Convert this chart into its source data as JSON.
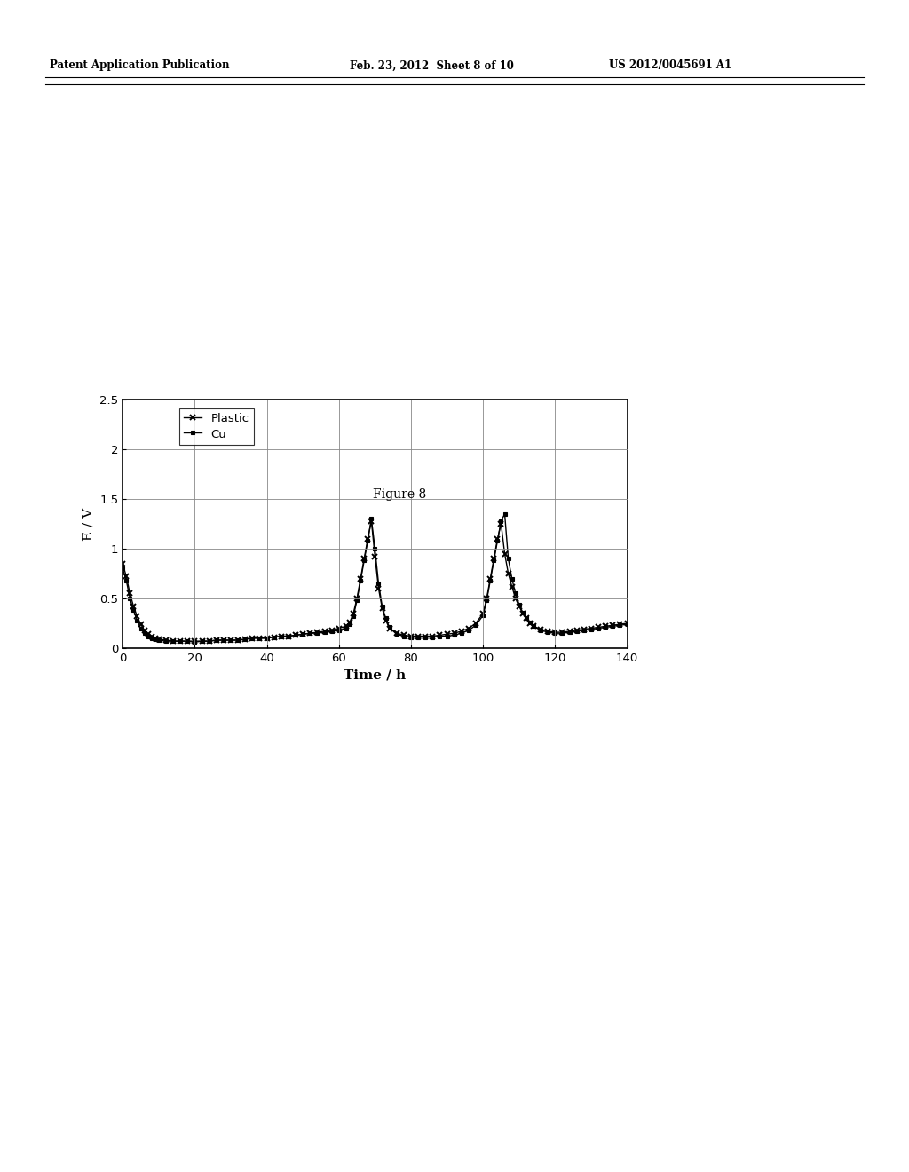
{
  "title": "Figure 8",
  "xlabel": "Time / h",
  "ylabel": "E / V",
  "xlim": [
    0,
    140
  ],
  "ylim": [
    0,
    2.5
  ],
  "xticks": [
    0,
    20,
    40,
    60,
    80,
    100,
    120,
    140
  ],
  "yticks": [
    0,
    0.5,
    1,
    1.5,
    2,
    2.5
  ],
  "legend_labels": [
    "Plastic",
    "Cu"
  ],
  "header_left": "Patent Application Publication",
  "header_center": "Feb. 23, 2012  Sheet 8 of 10",
  "header_right": "US 2012/0045691 A1",
  "plastic_x": [
    0,
    1,
    2,
    3,
    4,
    5,
    6,
    7,
    8,
    9,
    10,
    12,
    14,
    16,
    18,
    20,
    22,
    24,
    26,
    28,
    30,
    32,
    34,
    36,
    38,
    40,
    42,
    44,
    46,
    48,
    50,
    52,
    54,
    56,
    58,
    60,
    62,
    63,
    64,
    65,
    66,
    67,
    68,
    69,
    70,
    71,
    72,
    73,
    74,
    76,
    78,
    80,
    82,
    84,
    86,
    88,
    90,
    92,
    94,
    96,
    98,
    100,
    101,
    102,
    103,
    104,
    105,
    106,
    107,
    108,
    109,
    110,
    111,
    112,
    113,
    114,
    116,
    118,
    120,
    122,
    124,
    126,
    128,
    130,
    132,
    134,
    136,
    138,
    140
  ],
  "plastic_y": [
    0.85,
    0.72,
    0.55,
    0.42,
    0.32,
    0.24,
    0.18,
    0.14,
    0.12,
    0.1,
    0.09,
    0.08,
    0.07,
    0.07,
    0.07,
    0.07,
    0.07,
    0.07,
    0.08,
    0.08,
    0.08,
    0.08,
    0.09,
    0.1,
    0.1,
    0.1,
    0.11,
    0.12,
    0.12,
    0.13,
    0.14,
    0.15,
    0.16,
    0.17,
    0.18,
    0.2,
    0.22,
    0.26,
    0.35,
    0.5,
    0.7,
    0.9,
    1.1,
    1.28,
    0.92,
    0.6,
    0.4,
    0.28,
    0.2,
    0.15,
    0.13,
    0.12,
    0.12,
    0.12,
    0.12,
    0.13,
    0.14,
    0.15,
    0.17,
    0.2,
    0.25,
    0.35,
    0.5,
    0.7,
    0.9,
    1.1,
    1.25,
    0.95,
    0.75,
    0.62,
    0.5,
    0.42,
    0.35,
    0.3,
    0.25,
    0.22,
    0.19,
    0.17,
    0.16,
    0.16,
    0.17,
    0.18,
    0.19,
    0.2,
    0.21,
    0.22,
    0.23,
    0.24,
    0.25
  ],
  "cu_x": [
    0,
    1,
    2,
    3,
    4,
    5,
    6,
    7,
    8,
    9,
    10,
    12,
    14,
    16,
    18,
    20,
    22,
    24,
    26,
    28,
    30,
    32,
    34,
    36,
    38,
    40,
    42,
    44,
    46,
    48,
    50,
    52,
    54,
    56,
    58,
    60,
    62,
    63,
    64,
    65,
    66,
    67,
    68,
    69,
    70,
    71,
    72,
    73,
    74,
    76,
    78,
    80,
    82,
    84,
    86,
    88,
    90,
    92,
    94,
    96,
    98,
    100,
    101,
    102,
    103,
    104,
    105,
    106,
    107,
    108,
    109,
    110,
    111,
    112,
    113,
    114,
    116,
    118,
    120,
    122,
    124,
    126,
    128,
    130,
    132,
    134,
    136,
    138,
    140
  ],
  "cu_y": [
    0.8,
    0.68,
    0.5,
    0.38,
    0.28,
    0.2,
    0.15,
    0.12,
    0.1,
    0.09,
    0.08,
    0.07,
    0.07,
    0.07,
    0.07,
    0.06,
    0.07,
    0.07,
    0.08,
    0.08,
    0.08,
    0.08,
    0.09,
    0.1,
    0.1,
    0.1,
    0.11,
    0.12,
    0.12,
    0.13,
    0.14,
    0.15,
    0.15,
    0.16,
    0.17,
    0.18,
    0.2,
    0.24,
    0.32,
    0.48,
    0.68,
    0.88,
    1.08,
    1.3,
    1.0,
    0.65,
    0.42,
    0.3,
    0.21,
    0.14,
    0.12,
    0.11,
    0.11,
    0.11,
    0.11,
    0.12,
    0.12,
    0.13,
    0.15,
    0.18,
    0.23,
    0.33,
    0.48,
    0.68,
    0.88,
    1.08,
    1.28,
    1.35,
    0.9,
    0.7,
    0.55,
    0.44,
    0.36,
    0.3,
    0.26,
    0.22,
    0.18,
    0.16,
    0.15,
    0.15,
    0.16,
    0.17,
    0.18,
    0.19,
    0.2,
    0.21,
    0.22,
    0.23,
    0.24
  ],
  "line_color": "#000000",
  "bg_color": "#ffffff",
  "grid_color": "#888888"
}
